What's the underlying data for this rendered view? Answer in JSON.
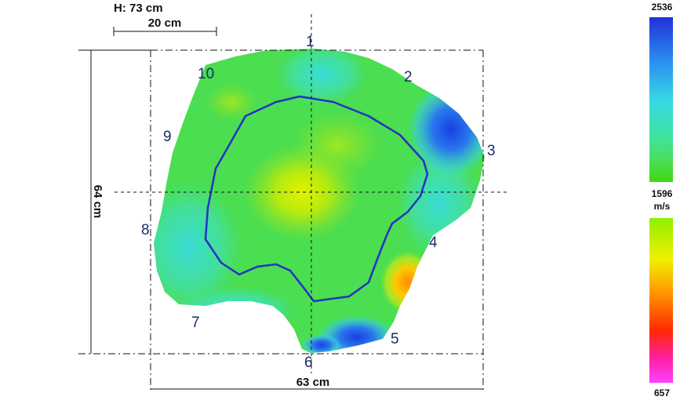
{
  "measurements": {
    "height_label": "H: 73 cm",
    "scale_bar_label": "20 cm",
    "vertical_dimension_label": "64 cm",
    "horizontal_dimension_label": "63 cm"
  },
  "sensor_points": [
    "1",
    "2",
    "3",
    "4",
    "5",
    "6",
    "7",
    "8",
    "9",
    "10"
  ],
  "legend": {
    "max_value": "2536",
    "mid_value": "1596",
    "unit": "m/s",
    "min_value": "657",
    "upper_scale_colors": [
      "#2030d8",
      "#2a88ee",
      "#36d8e6",
      "#40e3a0",
      "#4adf55",
      "#3ed70c"
    ],
    "lower_scale_colors": [
      "#8ff000",
      "#f0f000",
      "#ff9800",
      "#ff2a00",
      "#ff20a0",
      "#ff40ff"
    ]
  },
  "colors": {
    "contour_line": "#2532c0",
    "axis_lines": "#111111"
  }
}
